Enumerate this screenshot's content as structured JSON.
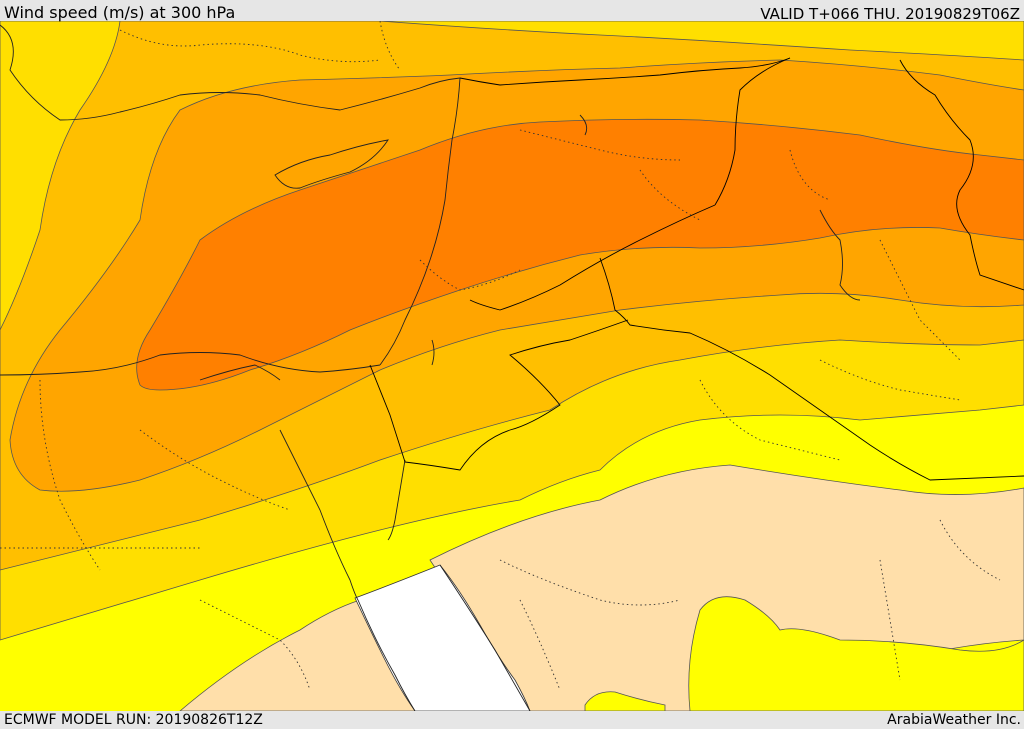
{
  "header": {
    "title": "Wind speed (m/s) at 300 hPa",
    "valid_time": "VALID T+066 THU. 20190829T06Z"
  },
  "footer": {
    "model_run": "ECMWF MODEL RUN: 20190826T12Z",
    "credit": "ArabiaWeather Inc."
  },
  "colors": {
    "band_lowest": "#ffdfaa",
    "band_low": "#ffff00",
    "band_mid_low": "#ffdf00",
    "band_mid": "#ffbf00",
    "band_high": "#ffa500",
    "band_highest": "#ff8000",
    "sea": "#ffffff",
    "contour": "#555555",
    "border": "#000000"
  }
}
